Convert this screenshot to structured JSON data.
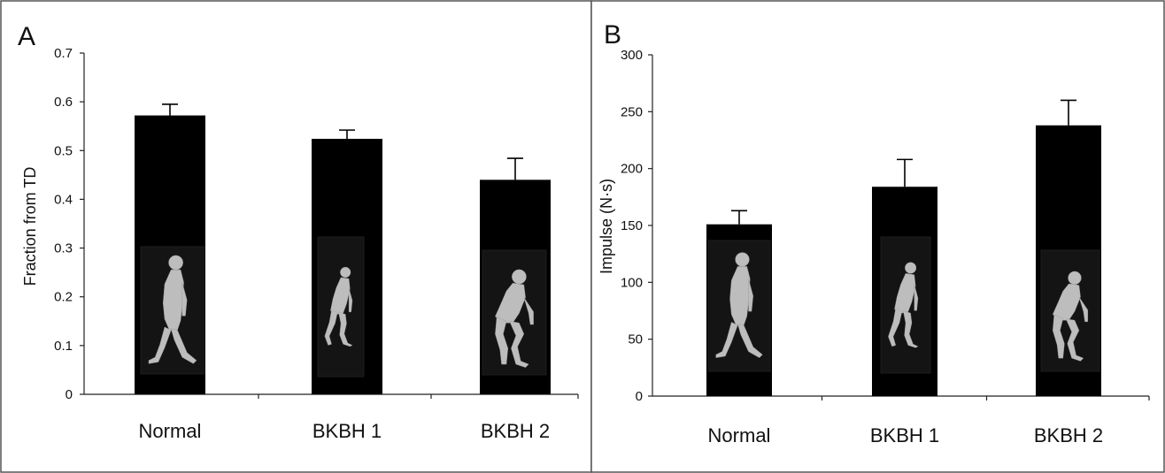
{
  "chart_data": [
    {
      "type": "bar",
      "panel": "A",
      "categories": [
        "Normal",
        "BKBH 1",
        "BKBH 2"
      ],
      "values": [
        0.572,
        0.524,
        0.44
      ],
      "errors": [
        0.023,
        0.018,
        0.044
      ],
      "ylabel": "Fraction from TD",
      "xlabel": "",
      "ylim": [
        0,
        0.7
      ],
      "yticks": [
        "0",
        "0.1",
        "0.2",
        "0.3",
        "0.4",
        "0.5",
        "0.6",
        "0.7"
      ],
      "bar_color": "#000000",
      "grid": false,
      "icons": [
        "walking-figure-upright-icon",
        "walking-figure-crouched-icon",
        "walking-figure-deep-crouch-icon"
      ]
    },
    {
      "type": "bar",
      "panel": "B",
      "categories": [
        "Normal",
        "BKBH 1",
        "BKBH 2"
      ],
      "values": [
        151,
        184,
        238
      ],
      "errors": [
        12,
        24,
        22
      ],
      "ylabel": "Impulse (N·s)",
      "xlabel": "",
      "ylim": [
        0,
        300
      ],
      "yticks": [
        "0",
        "50",
        "100",
        "150",
        "200",
        "250",
        "300"
      ],
      "bar_color": "#000000",
      "grid": false,
      "icons": [
        "walking-figure-upright-icon",
        "walking-figure-crouched-icon",
        "walking-figure-deep-crouch-icon"
      ]
    }
  ]
}
